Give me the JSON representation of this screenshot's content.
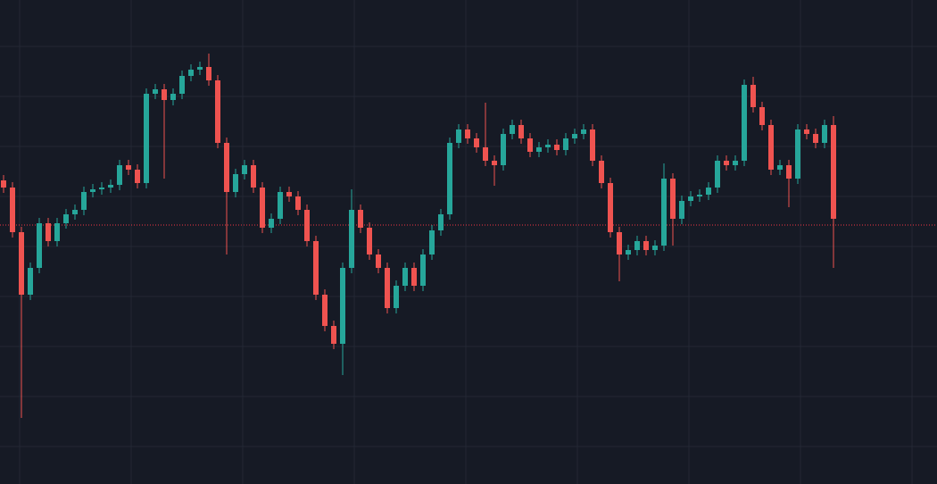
{
  "chart_data": {
    "type": "candlestick",
    "open": [
      340,
      332,
      282,
      212,
      242,
      292,
      272,
      292,
      302,
      307,
      327,
      330,
      332,
      335,
      357,
      352,
      337,
      437,
      442,
      430,
      437,
      457,
      464,
      467,
      452,
      382,
      327,
      347,
      357,
      332,
      287,
      297,
      327,
      322,
      307,
      272,
      212,
      177,
      157,
      242,
      307,
      287,
      257,
      242,
      197,
      222,
      242,
      222,
      257,
      284,
      302,
      382,
      397,
      387,
      377,
      362,
      357,
      392,
      402,
      387,
      372,
      377,
      380,
      374,
      387,
      392,
      397,
      362,
      337,
      282,
      257,
      262,
      272,
      262,
      267,
      342,
      297,
      317,
      322,
      324,
      332,
      362,
      357,
      362,
      447,
      422,
      402,
      352,
      357,
      342,
      397,
      392,
      382,
      402
    ],
    "high": [
      346,
      338,
      288,
      248,
      298,
      298,
      298,
      308,
      313,
      333,
      336,
      338,
      341,
      363,
      363,
      358,
      443,
      448,
      448,
      443,
      463,
      470,
      473,
      482,
      458,
      388,
      353,
      363,
      363,
      338,
      303,
      333,
      333,
      328,
      313,
      278,
      218,
      183,
      248,
      330,
      313,
      293,
      263,
      248,
      228,
      248,
      248,
      263,
      290,
      308,
      388,
      403,
      403,
      393,
      427,
      368,
      398,
      408,
      408,
      393,
      383,
      386,
      386,
      393,
      398,
      403,
      403,
      368,
      343,
      288,
      268,
      278,
      278,
      273,
      359,
      348,
      323,
      328,
      330,
      338,
      368,
      368,
      368,
      453,
      456,
      428,
      408,
      363,
      363,
      403,
      403,
      398,
      408,
      412
    ],
    "low": [
      326,
      276,
      74,
      206,
      236,
      266,
      266,
      286,
      296,
      301,
      321,
      324,
      326,
      329,
      346,
      331,
      331,
      431,
      342,
      424,
      431,
      451,
      458,
      446,
      376,
      257,
      321,
      341,
      326,
      281,
      281,
      291,
      316,
      301,
      266,
      206,
      171,
      151,
      122,
      236,
      281,
      251,
      236,
      191,
      191,
      216,
      216,
      216,
      251,
      278,
      296,
      376,
      381,
      371,
      356,
      334,
      351,
      386,
      381,
      366,
      366,
      371,
      368,
      368,
      381,
      386,
      356,
      331,
      276,
      227,
      251,
      256,
      256,
      256,
      261,
      267,
      291,
      311,
      316,
      318,
      326,
      351,
      351,
      356,
      416,
      396,
      346,
      346,
      310,
      336,
      386,
      376,
      376,
      242
    ],
    "close": [
      332,
      282,
      212,
      242,
      292,
      272,
      292,
      302,
      307,
      327,
      330,
      332,
      335,
      357,
      352,
      337,
      437,
      442,
      430,
      437,
      457,
      464,
      467,
      452,
      382,
      327,
      347,
      357,
      332,
      287,
      297,
      327,
      322,
      307,
      272,
      212,
      177,
      157,
      242,
      307,
      287,
      257,
      242,
      197,
      222,
      242,
      222,
      257,
      284,
      302,
      382,
      397,
      387,
      377,
      362,
      357,
      392,
      402,
      387,
      372,
      377,
      380,
      374,
      387,
      392,
      397,
      362,
      337,
      282,
      257,
      262,
      272,
      262,
      267,
      342,
      297,
      317,
      322,
      324,
      332,
      362,
      357,
      362,
      447,
      422,
      402,
      352,
      357,
      342,
      397,
      392,
      382,
      402,
      297
    ],
    "up_color": "#26a69a",
    "down_color": "#ef5350",
    "price_line": 290,
    "price_line_color": "#f23645",
    "grid": true,
    "xlim": [
      -0.4,
      104.6
    ],
    "xticks": [
      1.8,
      14.3,
      26.8,
      39.3,
      51.8,
      64.3,
      76.8,
      89.3,
      101.8
    ],
    "ylim": [
      0,
      542
    ],
    "yticks": [
      42,
      98,
      154,
      210,
      266,
      322,
      378,
      434,
      490
    ]
  }
}
